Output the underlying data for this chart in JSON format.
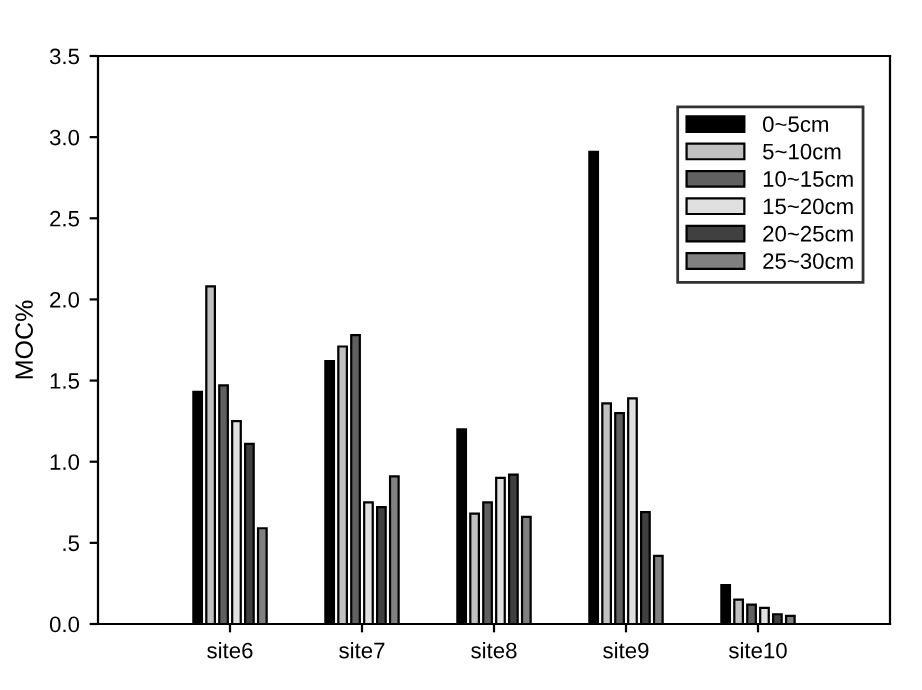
{
  "chart_data": {
    "type": "bar",
    "ylabel": "MOC%",
    "categories": [
      "site6",
      "site7",
      "site8",
      "site9",
      "site10"
    ],
    "series": [
      {
        "name": "0~5cm",
        "color": "#000000",
        "values": [
          1.43,
          1.62,
          1.2,
          2.91,
          0.24
        ]
      },
      {
        "name": "5~10cm",
        "color": "#c0c0c0",
        "values": [
          2.08,
          1.71,
          0.68,
          1.36,
          0.15
        ]
      },
      {
        "name": "10~15cm",
        "color": "#606060",
        "values": [
          1.47,
          1.78,
          0.75,
          1.3,
          0.12
        ]
      },
      {
        "name": "15~20cm",
        "color": "#e0e0e0",
        "values": [
          1.25,
          0.75,
          0.9,
          1.39,
          0.1
        ]
      },
      {
        "name": "20~25cm",
        "color": "#404040",
        "values": [
          1.11,
          0.72,
          0.92,
          0.69,
          0.06
        ]
      },
      {
        "name": "25~30cm",
        "color": "#808080",
        "values": [
          0.59,
          0.91,
          0.66,
          0.42,
          0.05
        ]
      }
    ],
    "ylim": [
      0,
      3.5
    ],
    "yticks": [
      {
        "value": 0,
        "label": "0.0"
      },
      {
        "value": 0.5,
        "label": ".5"
      },
      {
        "value": 1,
        "label": "1.0"
      },
      {
        "value": 1.5,
        "label": "1.5"
      },
      {
        "value": 2,
        "label": "2.0"
      },
      {
        "value": 2.5,
        "label": "2.5"
      },
      {
        "value": 3,
        "label": "3.0"
      },
      {
        "value": 3.5,
        "label": "3.5"
      }
    ],
    "grid": false,
    "legend": "top right"
  }
}
